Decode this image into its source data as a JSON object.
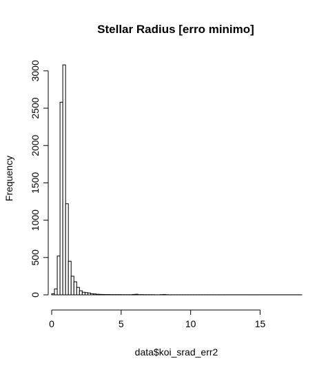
{
  "chart_data": {
    "type": "bar",
    "title": "Stellar Radius [erro minimo]",
    "xlabel": "data$koi_srad_err2",
    "ylabel": "Frequency",
    "x_ticks": [
      0,
      5,
      10,
      15
    ],
    "y_ticks": [
      0,
      500,
      1000,
      1500,
      2000,
      2500,
      3000
    ],
    "xlim": [
      0,
      18
    ],
    "ylim": [
      0,
      3100
    ],
    "bin_width": 0.2,
    "bin_start": 0,
    "counts": [
      15,
      80,
      520,
      2580,
      3080,
      1220,
      450,
      250,
      175,
      100,
      55,
      35,
      30,
      25,
      15,
      12,
      8,
      6,
      5,
      4,
      4,
      3,
      3,
      3,
      3,
      2,
      2,
      2,
      2,
      5,
      8,
      3,
      3,
      2,
      2,
      2,
      2,
      1,
      1,
      3,
      5,
      2,
      1,
      1,
      1,
      1,
      1,
      1,
      1,
      1,
      1,
      1,
      1,
      1,
      1,
      1,
      1,
      1,
      1,
      1,
      1,
      1,
      1,
      1,
      1,
      1,
      1,
      1,
      1,
      1,
      1,
      1,
      1,
      1,
      1,
      1,
      1,
      1,
      1,
      1,
      1,
      1,
      1,
      1,
      1,
      1,
      1,
      1,
      1,
      1
    ],
    "grid": false,
    "legend": "none"
  }
}
